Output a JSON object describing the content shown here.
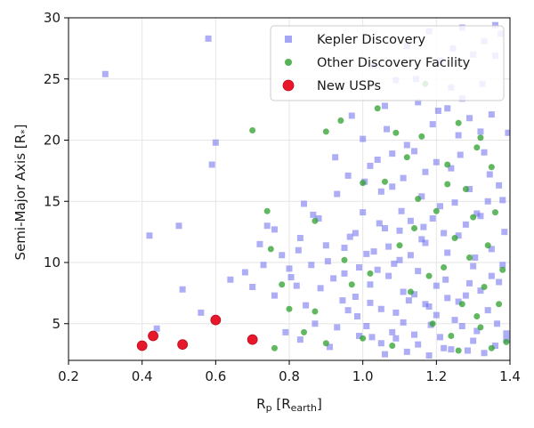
{
  "chart_data": {
    "type": "scatter",
    "xlabel": "R",
    "xlabel_sub": "p",
    "xlabel_unit": "R",
    "xlabel_unit_sub": "earth",
    "ylabel": "Semi-Major Axis [R",
    "ylabel_sub": "*",
    "ylabel_close": "]",
    "xlim": [
      0.2,
      1.4
    ],
    "ylim": [
      2,
      30
    ],
    "xticks": [
      0.2,
      0.4,
      0.6,
      0.8,
      1.0,
      1.2,
      1.4
    ],
    "xtick_labels": [
      "0.2",
      "0.4",
      "0.6",
      "0.8",
      "1.0",
      "1.2",
      "1.4"
    ],
    "yticks": [
      5,
      10,
      15,
      20,
      25,
      30
    ],
    "ytick_labels": [
      "5",
      "10",
      "15",
      "20",
      "25",
      "30"
    ],
    "grid": true,
    "legend_position": "top-right",
    "series": [
      {
        "name": "Kepler Discovery",
        "marker": "square",
        "color": "#6b6bf0",
        "opacity": 0.55,
        "points": [
          [
            0.3,
            25.4
          ],
          [
            0.42,
            12.2
          ],
          [
            0.44,
            4.6
          ],
          [
            0.5,
            13.0
          ],
          [
            0.51,
            7.8
          ],
          [
            0.58,
            28.3
          ],
          [
            0.6,
            19.8
          ],
          [
            0.59,
            18.0
          ],
          [
            0.56,
            5.9
          ],
          [
            0.64,
            8.6
          ],
          [
            0.68,
            9.2
          ],
          [
            0.7,
            8.0
          ],
          [
            0.72,
            11.5
          ],
          [
            0.73,
            9.8
          ],
          [
            0.74,
            13.0
          ],
          [
            0.76,
            12.7
          ],
          [
            0.76,
            7.3
          ],
          [
            0.78,
            10.6
          ],
          [
            0.8,
            9.5
          ],
          [
            0.82,
            8.1
          ],
          [
            0.83,
            12.0
          ],
          [
            0.84,
            14.8
          ],
          [
            0.86,
            9.8
          ],
          [
            0.88,
            13.6
          ],
          [
            0.9,
            11.4
          ],
          [
            0.92,
            8.7
          ],
          [
            0.93,
            15.6
          ],
          [
            0.95,
            11.2
          ],
          [
            0.96,
            17.1
          ],
          [
            0.97,
            22.0
          ],
          [
            0.98,
            7.2
          ],
          [
            0.99,
            9.6
          ],
          [
            1.0,
            14.1
          ],
          [
            1.01,
            4.8
          ],
          [
            1.02,
            6.7
          ],
          [
            1.03,
            10.9
          ],
          [
            1.04,
            18.4
          ],
          [
            1.05,
            3.4
          ],
          [
            1.06,
            12.8
          ],
          [
            1.07,
            8.9
          ],
          [
            1.08,
            16.2
          ],
          [
            1.09,
            5.9
          ],
          [
            1.1,
            10.2
          ],
          [
            1.11,
            7.6
          ],
          [
            1.12,
            19.6
          ],
          [
            1.13,
            13.4
          ],
          [
            1.14,
            4.1
          ],
          [
            1.15,
            9.3
          ],
          [
            1.16,
            15.4
          ],
          [
            1.17,
            11.6
          ],
          [
            1.18,
            6.4
          ],
          [
            1.19,
            21.3
          ],
          [
            1.2,
            8.1
          ],
          [
            1.21,
            14.6
          ],
          [
            1.22,
            3.0
          ],
          [
            1.23,
            10.8
          ],
          [
            1.24,
            17.7
          ],
          [
            1.25,
            5.3
          ],
          [
            1.26,
            12.2
          ],
          [
            1.27,
            23.4
          ],
          [
            1.28,
            7.3
          ],
          [
            1.29,
            16.0
          ],
          [
            1.3,
            9.7
          ],
          [
            1.31,
            4.4
          ],
          [
            1.32,
            13.8
          ],
          [
            1.33,
            19.0
          ],
          [
            1.34,
            6.1
          ],
          [
            1.35,
            11.1
          ],
          [
            1.36,
            26.9
          ],
          [
            1.37,
            8.4
          ],
          [
            1.38,
            15.1
          ],
          [
            1.39,
            3.7
          ],
          [
            1.395,
            20.6
          ],
          [
            1.385,
            12.5
          ],
          [
            1.375,
            28.7
          ],
          [
            1.365,
            5.0
          ],
          [
            1.345,
            17.2
          ],
          [
            1.325,
            24.6
          ],
          [
            1.305,
            10.4
          ],
          [
            1.285,
            2.8
          ],
          [
            1.265,
            18.8
          ],
          [
            1.245,
            27.5
          ],
          [
            1.225,
            8.6
          ],
          [
            1.205,
            22.4
          ],
          [
            1.185,
            4.9
          ],
          [
            1.165,
            12.9
          ],
          [
            1.145,
            25.0
          ],
          [
            1.125,
            6.9
          ],
          [
            1.105,
            14.2
          ],
          [
            1.085,
            9.9
          ],
          [
            1.065,
            20.9
          ],
          [
            1.045,
            13.2
          ],
          [
            1.025,
            3.9
          ],
          [
            1.005,
            16.6
          ],
          [
            0.985,
            5.6
          ],
          [
            0.965,
            12.1
          ],
          [
            0.945,
            6.9
          ],
          [
            0.925,
            18.6
          ],
          [
            0.905,
            10.1
          ],
          [
            0.885,
            7.9
          ],
          [
            0.865,
            13.9
          ],
          [
            0.845,
            6.5
          ],
          [
            0.825,
            11.0
          ],
          [
            0.805,
            8.8
          ],
          [
            1.36,
            29.4
          ],
          [
            1.33,
            28.1
          ],
          [
            1.3,
            27.0
          ],
          [
            1.27,
            29.2
          ],
          [
            1.24,
            24.3
          ],
          [
            1.21,
            26.5
          ],
          [
            1.18,
            28.9
          ],
          [
            1.15,
            23.1
          ],
          [
            1.12,
            27.7
          ],
          [
            1.09,
            24.9
          ],
          [
            1.06,
            22.8
          ],
          [
            1.03,
            26.1
          ],
          [
            1.0,
            20.1
          ],
          [
            1.35,
            22.1
          ],
          [
            1.32,
            20.7
          ],
          [
            1.29,
            21.8
          ],
          [
            1.26,
            20.4
          ],
          [
            1.23,
            22.6
          ],
          [
            1.2,
            18.2
          ],
          [
            1.17,
            17.4
          ],
          [
            1.14,
            19.1
          ],
          [
            1.11,
            16.9
          ],
          [
            1.08,
            18.9
          ],
          [
            1.05,
            15.8
          ],
          [
            1.02,
            17.9
          ],
          [
            1.37,
            16.3
          ],
          [
            1.34,
            15.0
          ],
          [
            1.31,
            14.0
          ],
          [
            1.28,
            13.1
          ],
          [
            1.25,
            14.9
          ],
          [
            1.22,
            12.4
          ],
          [
            1.19,
            13.6
          ],
          [
            1.16,
            11.9
          ],
          [
            1.13,
            10.6
          ],
          [
            1.1,
            12.6
          ],
          [
            1.07,
            11.3
          ],
          [
            1.04,
            9.4
          ],
          [
            1.01,
            10.7
          ],
          [
            0.98,
            12.4
          ],
          [
            0.95,
            9.1
          ],
          [
            1.38,
            9.8
          ],
          [
            1.35,
            8.9
          ],
          [
            1.32,
            7.7
          ],
          [
            1.29,
            8.3
          ],
          [
            1.26,
            6.8
          ],
          [
            1.23,
            7.1
          ],
          [
            1.2,
            5.7
          ],
          [
            1.17,
            6.6
          ],
          [
            1.14,
            7.4
          ],
          [
            1.11,
            5.1
          ],
          [
            1.08,
            4.3
          ],
          [
            1.05,
            6.2
          ],
          [
            1.02,
            8.2
          ],
          [
            0.99,
            4.0
          ],
          [
            0.96,
            6.1
          ],
          [
            0.93,
            4.7
          ],
          [
            1.39,
            4.2
          ],
          [
            1.36,
            3.2
          ],
          [
            1.33,
            2.6
          ],
          [
            1.3,
            3.6
          ],
          [
            1.27,
            4.8
          ],
          [
            1.24,
            2.9
          ],
          [
            1.21,
            3.9
          ],
          [
            1.18,
            2.4
          ],
          [
            1.15,
            3.3
          ],
          [
            1.12,
            2.7
          ],
          [
            1.09,
            3.8
          ],
          [
            1.06,
            2.5
          ],
          [
            0.91,
            3.1
          ],
          [
            0.87,
            5.0
          ],
          [
            0.83,
            3.7
          ],
          [
            0.79,
            4.3
          ]
        ]
      },
      {
        "name": "Other Discovery Facility",
        "marker": "circle",
        "color": "#2ca02c",
        "opacity": 0.75,
        "points": [
          [
            0.7,
            20.8
          ],
          [
            0.74,
            14.2
          ],
          [
            0.75,
            11.1
          ],
          [
            0.76,
            3.0
          ],
          [
            0.78,
            8.2
          ],
          [
            0.8,
            6.2
          ],
          [
            0.84,
            4.3
          ],
          [
            0.87,
            13.4
          ],
          [
            0.87,
            6.0
          ],
          [
            0.9,
            20.7
          ],
          [
            0.9,
            3.4
          ],
          [
            0.94,
            21.6
          ],
          [
            0.95,
            10.2
          ],
          [
            0.97,
            8.2
          ],
          [
            1.0,
            16.5
          ],
          [
            1.0,
            3.8
          ],
          [
            1.02,
            9.1
          ],
          [
            1.04,
            22.6
          ],
          [
            1.06,
            16.6
          ],
          [
            1.08,
            3.2
          ],
          [
            1.1,
            11.4
          ],
          [
            1.12,
            18.6
          ],
          [
            1.13,
            7.6
          ],
          [
            1.15,
            15.2
          ],
          [
            1.16,
            20.3
          ],
          [
            1.18,
            8.9
          ],
          [
            1.19,
            5.0
          ],
          [
            1.2,
            14.2
          ],
          [
            1.22,
            9.6
          ],
          [
            1.23,
            18.0
          ],
          [
            1.24,
            4.0
          ],
          [
            1.25,
            12.0
          ],
          [
            1.26,
            21.4
          ],
          [
            1.27,
            6.6
          ],
          [
            1.28,
            16.0
          ],
          [
            1.29,
            10.4
          ],
          [
            1.3,
            13.7
          ],
          [
            1.31,
            5.6
          ],
          [
            1.32,
            20.2
          ],
          [
            1.33,
            8.0
          ],
          [
            1.34,
            11.4
          ],
          [
            1.35,
            3.0
          ],
          [
            1.36,
            14.1
          ],
          [
            1.37,
            6.6
          ],
          [
            1.38,
            9.4
          ],
          [
            1.39,
            3.5
          ],
          [
            1.35,
            17.8
          ],
          [
            1.31,
            19.4
          ],
          [
            1.23,
            16.4
          ],
          [
            1.14,
            12.8
          ],
          [
            1.09,
            20.6
          ],
          [
            1.17,
            24.6
          ],
          [
            1.32,
            4.7
          ],
          [
            1.26,
            2.8
          ]
        ]
      },
      {
        "name": "New USPs",
        "marker": "circle",
        "color": "#e8182b",
        "opacity": 1.0,
        "points": [
          [
            0.4,
            3.2
          ],
          [
            0.43,
            4.0
          ],
          [
            0.51,
            3.3
          ],
          [
            0.6,
            5.3
          ],
          [
            0.7,
            3.7
          ]
        ]
      }
    ]
  }
}
